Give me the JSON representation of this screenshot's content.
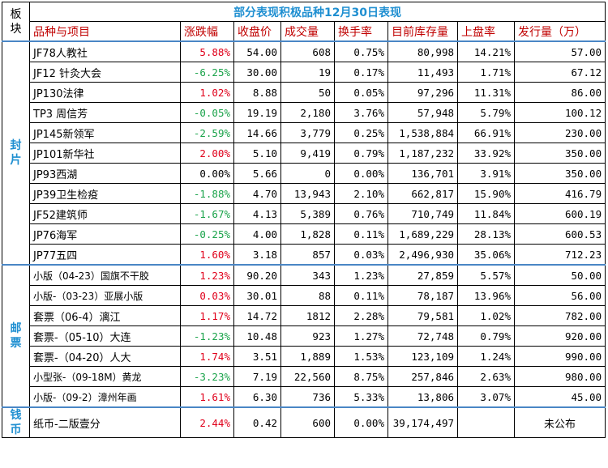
{
  "title": "部分表现积极品种12月30日表现",
  "corner_label": "板块",
  "headers": [
    "品种与项目",
    "涨跌幅",
    "收盘价",
    "成交量",
    "换手率",
    "目前库存量",
    "上盘率",
    "发行量（万）"
  ],
  "colors": {
    "title": "#1f8fd1",
    "header": "#c00000",
    "up": "#e0001b",
    "down": "#1aa34a",
    "section_rule": "#4a86c5"
  },
  "sections": [
    {
      "label": "封片",
      "rows": [
        {
          "name": "JF78人教社",
          "change": "5.88%",
          "dir": "up",
          "close": "54.00",
          "volume": "608",
          "turnover": "0.75%",
          "stock": "80,998",
          "rate": "14.21%",
          "issue": "57.00"
        },
        {
          "name": "JF12 针灸大会",
          "change": "-6.25%",
          "dir": "down",
          "close": "30.00",
          "volume": "19",
          "turnover": "0.17%",
          "stock": "11,493",
          "rate": "1.71%",
          "issue": "67.12"
        },
        {
          "name": "JP130法律",
          "change": "1.02%",
          "dir": "up",
          "close": "8.88",
          "volume": "50",
          "turnover": "0.05%",
          "stock": "97,296",
          "rate": "11.31%",
          "issue": "86.00"
        },
        {
          "name": "TP3 周信芳",
          "change": "-0.05%",
          "dir": "down",
          "close": "19.19",
          "volume": "2,180",
          "turnover": "3.76%",
          "stock": "57,948",
          "rate": "5.79%",
          "issue": "100.12"
        },
        {
          "name": "JP145新领军",
          "change": "-2.59%",
          "dir": "down",
          "close": "14.66",
          "volume": "3,779",
          "turnover": "0.25%",
          "stock": "1,538,884",
          "rate": "66.91%",
          "issue": "230.00"
        },
        {
          "name": "JP101新华社",
          "change": "2.00%",
          "dir": "up",
          "close": "5.10",
          "volume": "9,419",
          "turnover": "0.79%",
          "stock": "1,187,232",
          "rate": "33.92%",
          "issue": "350.00"
        },
        {
          "name": "JP93西湖",
          "change": "0.00%",
          "dir": "flat",
          "close": "5.66",
          "volume": "0",
          "turnover": "0.00%",
          "stock": "136,701",
          "rate": "3.91%",
          "issue": "350.00"
        },
        {
          "name": "JP39卫生检疫",
          "change": "-1.88%",
          "dir": "down",
          "close": "4.70",
          "volume": "13,943",
          "turnover": "2.10%",
          "stock": "662,817",
          "rate": "15.90%",
          "issue": "416.79"
        },
        {
          "name": "JF52建筑师",
          "change": "-1.67%",
          "dir": "down",
          "close": "4.13",
          "volume": "5,389",
          "turnover": "0.76%",
          "stock": "710,749",
          "rate": "11.84%",
          "issue": "600.19"
        },
        {
          "name": "JP76海军",
          "change": "-0.25%",
          "dir": "down",
          "close": "4.00",
          "volume": "1,828",
          "turnover": "0.11%",
          "stock": "1,689,229",
          "rate": "28.13%",
          "issue": "600.53"
        },
        {
          "name": "JP77五四",
          "change": "1.60%",
          "dir": "up",
          "close": "3.18",
          "volume": "857",
          "turnover": "0.03%",
          "stock": "2,496,930",
          "rate": "35.06%",
          "issue": "712.23"
        }
      ]
    },
    {
      "label": "邮票",
      "rows": [
        {
          "name": "小版（04-23）国旗不干胶",
          "change": "1.23%",
          "dir": "up",
          "close": "90.20",
          "volume": "343",
          "turnover": "1.23%",
          "stock": "27,859",
          "rate": "5.57%",
          "issue": "50.00",
          "small": true
        },
        {
          "name": "小版-（03-23）亚展小版",
          "change": "0.03%",
          "dir": "up",
          "close": "30.01",
          "volume": "88",
          "turnover": "0.11%",
          "stock": "78,187",
          "rate": "13.96%",
          "issue": "56.00",
          "small": true
        },
        {
          "name": "套票（06-4）漓江",
          "change": "1.17%",
          "dir": "up",
          "close": "14.72",
          "volume": "1812",
          "turnover": "2.28%",
          "stock": "79,581",
          "rate": "1.02%",
          "issue": "782.00"
        },
        {
          "name": "套票-（05-10）大连",
          "change": "-1.23%",
          "dir": "down",
          "close": "10.48",
          "volume": "923",
          "turnover": "1.27%",
          "stock": "72,748",
          "rate": "0.79%",
          "issue": "920.00"
        },
        {
          "name": "套票-（04-20）人大",
          "change": "1.74%",
          "dir": "up",
          "close": "3.51",
          "volume": "1,889",
          "turnover": "1.53%",
          "stock": "123,109",
          "rate": "1.24%",
          "issue": "990.00"
        },
        {
          "name": "小型张-（09-18M）黄龙",
          "change": "-3.23%",
          "dir": "down",
          "close": "7.19",
          "volume": "22,560",
          "turnover": "8.75%",
          "stock": "257,846",
          "rate": "2.63%",
          "issue": "980.00",
          "small": true
        },
        {
          "name": "小版-（09-2）漳州年画",
          "change": "1.61%",
          "dir": "up",
          "close": "6.30",
          "volume": "736",
          "turnover": "5.33%",
          "stock": "13,806",
          "rate": "3.07%",
          "issue": "45.00",
          "small": true
        }
      ]
    },
    {
      "label": "钱币",
      "rows": [
        {
          "name": "纸币-二版壹分",
          "change": "2.44%",
          "dir": "up",
          "close": "0.42",
          "volume": "600",
          "turnover": "0.00%",
          "stock": "39,174,497",
          "rate": "",
          "issue": "未公布",
          "tall": true
        }
      ]
    }
  ]
}
